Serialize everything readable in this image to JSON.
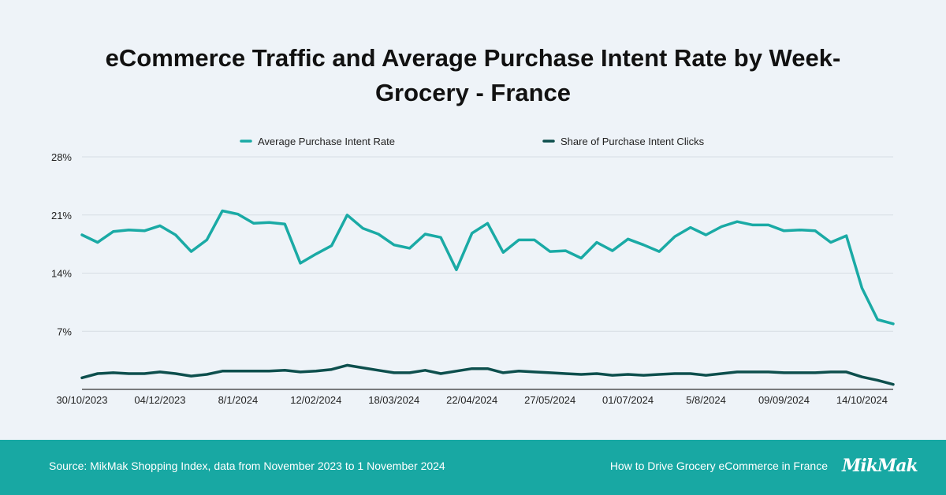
{
  "title_line1": "eCommerce Traffic and Average Purchase Intent Rate by Week-",
  "title_line2": "Grocery - France",
  "footer": {
    "source": "Source: MikMak Shopping Index, data from November 2023 to 1 November 2024",
    "promo": "How to Drive Grocery eCommerce in France",
    "logo": "MikMak"
  },
  "colors": {
    "background": "#eef3f8",
    "footer": "#18a8a3",
    "intent_rate": "#1aaaa5",
    "share_clicks": "#0d4f4d",
    "grid": "#d6dde3"
  },
  "chart_data": {
    "type": "line",
    "ylim": [
      0,
      28
    ],
    "yticks": [
      7,
      14,
      21,
      28
    ],
    "ytick_labels": [
      "7%",
      "14%",
      "21%",
      "28%"
    ],
    "grid": true,
    "legend_position": "top",
    "x_tick_labels": [
      "30/10/2023",
      "04/12/2023",
      "8/1/2024",
      "12/02/2024",
      "18/03/2024",
      "22/04/2024",
      "27/05/2024",
      "01/07/2024",
      "5/8/2024",
      "09/09/2024",
      "14/10/2024"
    ],
    "x_tick_positions": [
      0,
      5,
      10,
      15,
      20,
      25,
      30,
      35,
      40,
      45,
      50
    ],
    "series": [
      {
        "name": "Average Purchase Intent Rate",
        "color": "#1aaaa5",
        "values": [
          18.6,
          17.7,
          19.0,
          19.2,
          19.1,
          19.7,
          18.6,
          16.6,
          18.0,
          21.5,
          21.1,
          20.0,
          20.1,
          19.9,
          15.2,
          16.3,
          17.3,
          21.0,
          19.4,
          18.7,
          17.4,
          17.0,
          18.7,
          18.3,
          14.4,
          18.8,
          20.0,
          16.5,
          18.0,
          18.0,
          16.6,
          16.7,
          15.8,
          17.7,
          16.7,
          18.1,
          17.4,
          16.6,
          18.4,
          19.5,
          18.6,
          19.6,
          20.2,
          19.8,
          19.8,
          19.1,
          19.2,
          19.1,
          17.7,
          18.5,
          12.2,
          8.4,
          7.9
        ]
      },
      {
        "name": "Share of Purchase Intent Clicks",
        "color": "#0d4f4d",
        "values": [
          1.4,
          1.9,
          2.0,
          1.9,
          1.9,
          2.1,
          1.9,
          1.6,
          1.8,
          2.2,
          2.2,
          2.2,
          2.2,
          2.3,
          2.1,
          2.2,
          2.4,
          2.9,
          2.6,
          2.3,
          2.0,
          2.0,
          2.3,
          1.9,
          2.2,
          2.5,
          2.5,
          2.0,
          2.2,
          2.1,
          2.0,
          1.9,
          1.8,
          1.9,
          1.7,
          1.8,
          1.7,
          1.8,
          1.9,
          1.9,
          1.7,
          1.9,
          2.1,
          2.1,
          2.1,
          2.0,
          2.0,
          2.0,
          2.1,
          2.1,
          1.5,
          1.1,
          0.6
        ]
      }
    ]
  }
}
